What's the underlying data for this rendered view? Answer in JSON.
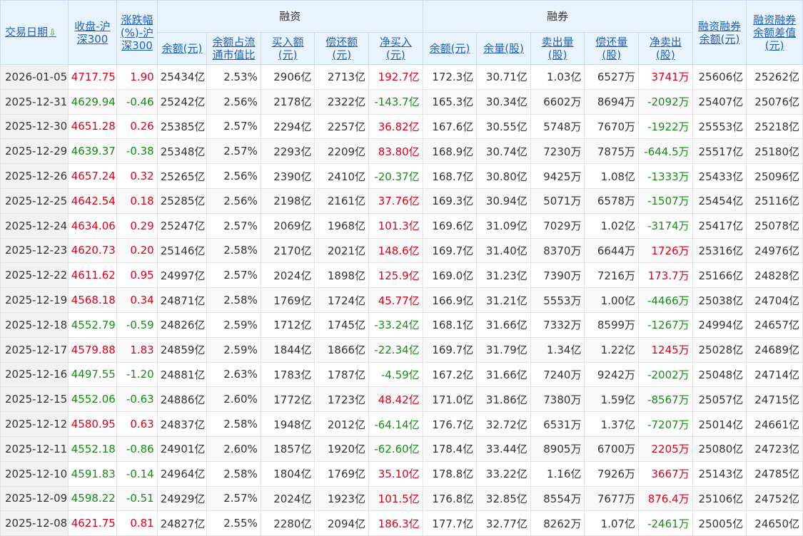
{
  "headers": {
    "date": "交易日期",
    "close": "收盘-沪深300",
    "change": "涨跌幅(%)-沪深300",
    "margin_group": "融资",
    "short_group": "融券",
    "total_balance": "融资融券余额(元)",
    "diff": "融资融券余额差值(元)",
    "m_balance": "余额(元)",
    "m_ratio": "余额占流通市值比",
    "m_buy": "买入额(元)",
    "m_repay": "偿还额(元)",
    "m_net": "净买入(元)",
    "s_balance": "余额(元)",
    "s_volume": "余量(股)",
    "s_sell": "卖出量(股)",
    "s_repay": "偿还量(股)",
    "s_net": "净卖出(股)"
  },
  "sort_icon": "down-arrow-icon",
  "colors": {
    "up": "#e0001a",
    "down": "#1a8a1a",
    "header_text": "#1f5fbf"
  },
  "rows": [
    {
      "date": "2026-01-05",
      "close": "4717.75",
      "change": "1.90",
      "mbal": "25434亿",
      "ratio": "2.53%",
      "buy": "2906亿",
      "repay": "2713亿",
      "net": "192.7亿",
      "sbal": "172.3亿",
      "svol": "30.71亿",
      "ssell": "1.03亿",
      "srepay": "6527万",
      "snet": "3741万",
      "total": "25606亿",
      "diff": "25262亿"
    },
    {
      "date": "2025-12-31",
      "close": "4629.94",
      "change": "-0.46",
      "mbal": "25242亿",
      "ratio": "2.56%",
      "buy": "2178亿",
      "repay": "2322亿",
      "net": "-143.7亿",
      "sbal": "165.3亿",
      "svol": "30.34亿",
      "ssell": "6602万",
      "srepay": "8694万",
      "snet": "-2092万",
      "total": "25407亿",
      "diff": "25076亿"
    },
    {
      "date": "2025-12-30",
      "close": "4651.28",
      "change": "0.26",
      "mbal": "25385亿",
      "ratio": "2.57%",
      "buy": "2294亿",
      "repay": "2257亿",
      "net": "36.82亿",
      "sbal": "167.6亿",
      "svol": "30.55亿",
      "ssell": "5748万",
      "srepay": "7670万",
      "snet": "-1922万",
      "total": "25553亿",
      "diff": "25218亿"
    },
    {
      "date": "2025-12-29",
      "close": "4639.37",
      "change": "-0.38",
      "mbal": "25348亿",
      "ratio": "2.57%",
      "buy": "2293亿",
      "repay": "2209亿",
      "net": "83.80亿",
      "sbal": "168.9亿",
      "svol": "30.74亿",
      "ssell": "7230万",
      "srepay": "7875万",
      "snet": "-644.5万",
      "total": "25517亿",
      "diff": "25180亿"
    },
    {
      "date": "2025-12-26",
      "close": "4657.24",
      "change": "0.32",
      "mbal": "25265亿",
      "ratio": "2.56%",
      "buy": "2390亿",
      "repay": "2410亿",
      "net": "-20.37亿",
      "sbal": "168.7亿",
      "svol": "30.80亿",
      "ssell": "9425万",
      "srepay": "1.08亿",
      "snet": "-1333万",
      "total": "25433亿",
      "diff": "25096亿"
    },
    {
      "date": "2025-12-25",
      "close": "4642.54",
      "change": "0.18",
      "mbal": "25285亿",
      "ratio": "2.56%",
      "buy": "2198亿",
      "repay": "2161亿",
      "net": "37.76亿",
      "sbal": "169.3亿",
      "svol": "30.94亿",
      "ssell": "5071万",
      "srepay": "6578万",
      "snet": "-1507万",
      "total": "25454亿",
      "diff": "25116亿"
    },
    {
      "date": "2025-12-24",
      "close": "4634.06",
      "change": "0.29",
      "mbal": "25247亿",
      "ratio": "2.57%",
      "buy": "2069亿",
      "repay": "1968亿",
      "net": "101.3亿",
      "sbal": "169.6亿",
      "svol": "31.09亿",
      "ssell": "7029万",
      "srepay": "1.02亿",
      "snet": "-3174万",
      "total": "25417亿",
      "diff": "25078亿"
    },
    {
      "date": "2025-12-23",
      "close": "4620.73",
      "change": "0.20",
      "mbal": "25146亿",
      "ratio": "2.58%",
      "buy": "2170亿",
      "repay": "2021亿",
      "net": "148.6亿",
      "sbal": "169.7亿",
      "svol": "31.40亿",
      "ssell": "8370万",
      "srepay": "6644万",
      "snet": "1726万",
      "total": "25316亿",
      "diff": "24976亿"
    },
    {
      "date": "2025-12-22",
      "close": "4611.62",
      "change": "0.95",
      "mbal": "24997亿",
      "ratio": "2.57%",
      "buy": "2024亿",
      "repay": "1898亿",
      "net": "125.9亿",
      "sbal": "169.0亿",
      "svol": "31.23亿",
      "ssell": "7390万",
      "srepay": "7216万",
      "snet": "173.7万",
      "total": "25166亿",
      "diff": "24828亿"
    },
    {
      "date": "2025-12-19",
      "close": "4568.18",
      "change": "0.34",
      "mbal": "24871亿",
      "ratio": "2.58%",
      "buy": "1769亿",
      "repay": "1724亿",
      "net": "45.77亿",
      "sbal": "166.9亿",
      "svol": "31.21亿",
      "ssell": "5553万",
      "srepay": "1.00亿",
      "snet": "-4466万",
      "total": "25038亿",
      "diff": "24704亿"
    },
    {
      "date": "2025-12-18",
      "close": "4552.79",
      "change": "-0.59",
      "mbal": "24826亿",
      "ratio": "2.59%",
      "buy": "1712亿",
      "repay": "1745亿",
      "net": "-33.24亿",
      "sbal": "168.1亿",
      "svol": "31.66亿",
      "ssell": "7332万",
      "srepay": "8599万",
      "snet": "-1267万",
      "total": "24994亿",
      "diff": "24657亿"
    },
    {
      "date": "2025-12-17",
      "close": "4579.88",
      "change": "1.83",
      "mbal": "24859亿",
      "ratio": "2.59%",
      "buy": "1844亿",
      "repay": "1866亿",
      "net": "-22.34亿",
      "sbal": "169.7亿",
      "svol": "31.79亿",
      "ssell": "1.34亿",
      "srepay": "1.22亿",
      "snet": "1245万",
      "total": "25028亿",
      "diff": "24689亿"
    },
    {
      "date": "2025-12-16",
      "close": "4497.55",
      "change": "-1.20",
      "mbal": "24881亿",
      "ratio": "2.63%",
      "buy": "1783亿",
      "repay": "1787亿",
      "net": "-4.59亿",
      "sbal": "167.2亿",
      "svol": "31.66亿",
      "ssell": "7240万",
      "srepay": "9242万",
      "snet": "-2002万",
      "total": "25048亿",
      "diff": "24714亿"
    },
    {
      "date": "2025-12-15",
      "close": "4552.06",
      "change": "-0.63",
      "mbal": "24886亿",
      "ratio": "2.60%",
      "buy": "1772亿",
      "repay": "1723亿",
      "net": "48.42亿",
      "sbal": "171.0亿",
      "svol": "31.86亿",
      "ssell": "7380万",
      "srepay": "1.59亿",
      "snet": "-8567万",
      "total": "25057亿",
      "diff": "24715亿"
    },
    {
      "date": "2025-12-12",
      "close": "4580.95",
      "change": "0.63",
      "mbal": "24837亿",
      "ratio": "2.58%",
      "buy": "1948亿",
      "repay": "2012亿",
      "net": "-64.14亿",
      "sbal": "176.7亿",
      "svol": "32.72亿",
      "ssell": "6531万",
      "srepay": "1.37亿",
      "snet": "-7207万",
      "total": "25014亿",
      "diff": "24661亿"
    },
    {
      "date": "2025-12-11",
      "close": "4552.18",
      "change": "-0.86",
      "mbal": "24901亿",
      "ratio": "2.60%",
      "buy": "1857亿",
      "repay": "1920亿",
      "net": "-62.60亿",
      "sbal": "178.4亿",
      "svol": "33.44亿",
      "ssell": "8905万",
      "srepay": "6700万",
      "snet": "2205万",
      "total": "25080亿",
      "diff": "24723亿"
    },
    {
      "date": "2025-12-10",
      "close": "4591.83",
      "change": "-0.14",
      "mbal": "24964亿",
      "ratio": "2.58%",
      "buy": "1804亿",
      "repay": "1769亿",
      "net": "35.10亿",
      "sbal": "178.8亿",
      "svol": "33.22亿",
      "ssell": "1.16亿",
      "srepay": "7926万",
      "snet": "3667万",
      "total": "25143亿",
      "diff": "24785亿"
    },
    {
      "date": "2025-12-09",
      "close": "4598.22",
      "change": "-0.51",
      "mbal": "24929亿",
      "ratio": "2.57%",
      "buy": "2024亿",
      "repay": "1923亿",
      "net": "101.5亿",
      "sbal": "176.8亿",
      "svol": "32.85亿",
      "ssell": "8554万",
      "srepay": "7677万",
      "snet": "876.4万",
      "total": "25106亿",
      "diff": "24752亿"
    },
    {
      "date": "2025-12-08",
      "close": "4621.75",
      "change": "0.81",
      "mbal": "24827亿",
      "ratio": "2.55%",
      "buy": "2280亿",
      "repay": "2094亿",
      "net": "186.3亿",
      "sbal": "177.7亿",
      "svol": "32.77亿",
      "ssell": "8262万",
      "srepay": "1.07亿",
      "snet": "-2461万",
      "total": "25005亿",
      "diff": "24650亿"
    }
  ]
}
